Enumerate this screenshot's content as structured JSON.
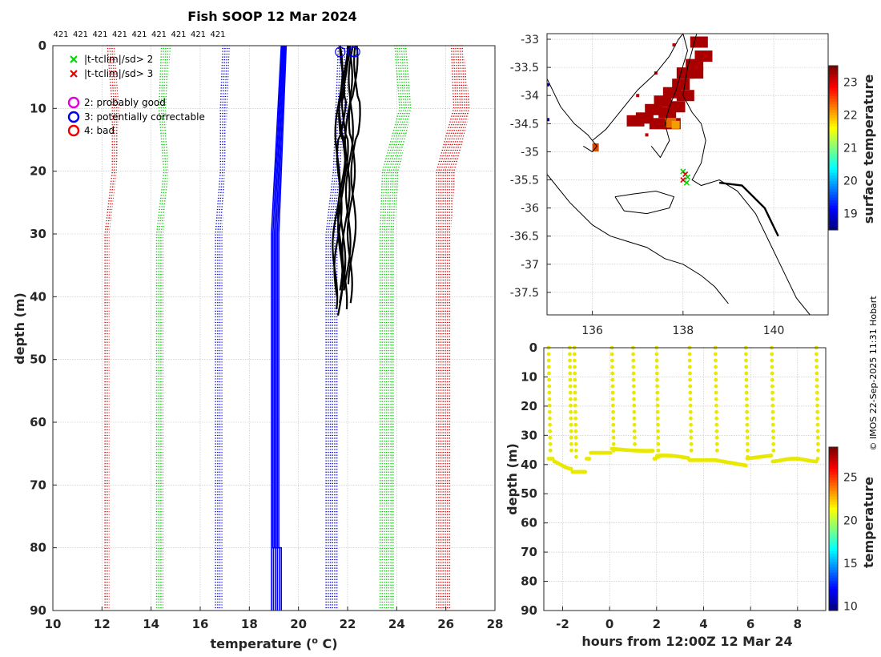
{
  "chart_data": [
    {
      "type": "line",
      "name": "profile",
      "title": "Fish SOOP 12 Mar 2024",
      "xlabel": "temperature (",
      "xlabel_sup": "o",
      "xlabel_tail": " C)",
      "ylabel": "depth (m)",
      "xlim": [
        10,
        28
      ],
      "ylim": [
        0,
        90
      ],
      "xticks": [
        10,
        12,
        14,
        16,
        18,
        20,
        22,
        24,
        26,
        28
      ],
      "yticks": [
        0,
        10,
        20,
        30,
        40,
        50,
        60,
        70,
        80,
        90
      ],
      "top_labels": [
        "421",
        "421",
        "421",
        "421",
        "421",
        "421",
        "421",
        "421",
        "421"
      ],
      "legend": [
        {
          "marker": "x",
          "color": "#00d800",
          "label": "|t-tclim|/sd> 2"
        },
        {
          "marker": "x",
          "color": "#e00000",
          "label": "|t-tclim|/sd> 3"
        },
        {
          "marker": "o",
          "color": "#e000e0",
          "label": "2: probably good"
        },
        {
          "marker": "o",
          "color": "#0000ee",
          "label": "3: potentially correctable"
        },
        {
          "marker": "o",
          "color": "#ee0000",
          "label": "4: bad"
        }
      ],
      "series": [
        {
          "name": "clim -3sd (red)",
          "color": "#d40000",
          "depth": [
            0,
            10,
            20,
            30,
            80,
            90
          ],
          "temp_min": [
            12.2,
            12.4,
            12.4,
            12.1,
            12.1,
            12.1
          ],
          "temp_max": [
            12.5,
            12.7,
            12.6,
            12.3,
            12.3,
            12.3
          ]
        },
        {
          "name": "clim -2sd (green)",
          "color": "#00c800",
          "depth": [
            0,
            10,
            20,
            30,
            80,
            90
          ],
          "temp_min": [
            14.4,
            14.3,
            14.5,
            14.2,
            14.2,
            14.2
          ],
          "temp_max": [
            14.8,
            14.6,
            14.7,
            14.5,
            14.5,
            14.5
          ]
        },
        {
          "name": "clim -1sd (blue)",
          "color": "#0000e0",
          "depth": [
            0,
            10,
            20,
            30,
            80,
            90
          ],
          "temp_min": [
            16.9,
            16.8,
            16.8,
            16.6,
            16.6,
            16.6
          ],
          "temp_max": [
            17.2,
            17.1,
            17.0,
            16.9,
            16.9,
            16.9
          ]
        },
        {
          "name": "clim +1sd (blue)",
          "color": "#0000e0",
          "depth": [
            0,
            10,
            20,
            30,
            80,
            90
          ],
          "temp_min": [
            21.6,
            21.5,
            21.4,
            21.1,
            21.1,
            21.1
          ],
          "temp_max": [
            22.0,
            22.0,
            21.7,
            21.6,
            21.6,
            21.6
          ]
        },
        {
          "name": "clim +2sd (green)",
          "color": "#00c800",
          "depth": [
            0,
            10,
            20,
            30,
            80,
            90
          ],
          "temp_min": [
            23.9,
            24.1,
            23.4,
            23.3,
            23.3,
            23.3
          ],
          "temp_max": [
            24.4,
            24.6,
            24.1,
            23.9,
            23.9,
            23.9
          ]
        },
        {
          "name": "clim +3sd (red)",
          "color": "#d40000",
          "depth": [
            0,
            10,
            20,
            30,
            80,
            90
          ],
          "temp_min": [
            26.2,
            26.3,
            25.6,
            25.6,
            25.6,
            25.6
          ],
          "temp_max": [
            26.7,
            27.0,
            26.4,
            26.2,
            26.2,
            26.2
          ]
        },
        {
          "name": "climatology mean",
          "color": "#0000ff",
          "depth": [
            0,
            30,
            80,
            80,
            90
          ],
          "temp_a": [
            19.3,
            18.9,
            18.9,
            18.9,
            18.9
          ],
          "temp_b": [
            19.5,
            19.2,
            19.2,
            19.3,
            19.3
          ]
        },
        {
          "name": "fish profiles",
          "color": "#000000",
          "depth_max": [
            42,
            43,
            41,
            39,
            38,
            40,
            42,
            41,
            39
          ],
          "temp_start": [
            21.7,
            21.9,
            22.0,
            22.2,
            22.4,
            21.8,
            22.1,
            22.3,
            21.9
          ]
        }
      ],
      "flag_circles": [
        {
          "depth": 1,
          "temp": 21.7
        },
        {
          "depth": 1,
          "temp": 22.2
        },
        {
          "depth": 1,
          "temp": 22.3
        }
      ]
    },
    {
      "type": "heatmap",
      "name": "map",
      "xlim": [
        135,
        141.2
      ],
      "ylim": [
        -37.9,
        -32.9
      ],
      "xticks": [
        136,
        138,
        140
      ],
      "yticks": [
        -33,
        -33.5,
        -34,
        -34.5,
        -35,
        -35.5,
        -36,
        -36.5,
        -37,
        -37.5
      ],
      "colorbar_label": "surface temperature",
      "colorbar_range": [
        18.5,
        23.5
      ],
      "colorbar_ticks": [
        19,
        20,
        21,
        22,
        23
      ],
      "sst_points_lon": [
        137.8,
        137.4,
        137.0,
        136.8,
        138.5,
        137.6,
        137.2,
        137.9,
        138.3
      ],
      "sst_points_lat": [
        -33.1,
        -33.6,
        -34.0,
        -34.4,
        -33.3,
        -34.5,
        -34.7,
        -33.8,
        -33.5
      ],
      "fish_lon": [
        138.0,
        138.05,
        138.1,
        138.0,
        138.08
      ],
      "fish_lat": [
        -35.35,
        -35.4,
        -35.45,
        -35.5,
        -35.55
      ]
    },
    {
      "type": "scatter",
      "name": "depth_time",
      "xlabel": "hours from 12:00Z 12 Mar 24",
      "ylabel": "depth (m)",
      "xlim": [
        -2.8,
        9.2
      ],
      "ylim": [
        0,
        90
      ],
      "xticks": [
        -2,
        0,
        2,
        4,
        6,
        8
      ],
      "yticks": [
        0,
        10,
        20,
        30,
        40,
        50,
        60,
        70,
        80,
        90
      ],
      "colorbar_label": "temperature",
      "colorbar_range": [
        9.5,
        28.5
      ],
      "colorbar_ticks": [
        10,
        15,
        20,
        25
      ],
      "dive_start_hours": [
        -2.6,
        -1.7,
        -1.5,
        0.1,
        1.0,
        2.0,
        3.4,
        4.5,
        5.8,
        6.9,
        8.8
      ]
    }
  ],
  "credit": "© IMOS 22-Sep-2025 11:31 Hobart"
}
